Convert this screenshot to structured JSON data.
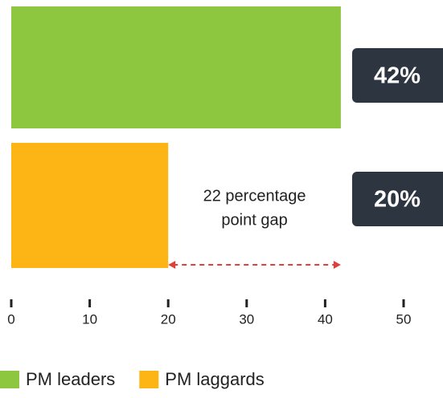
{
  "chart_data": {
    "type": "barh",
    "series": [
      {
        "name": "PM leaders",
        "color": "#8dc63f",
        "values": [
          42
        ],
        "value_labels": [
          "42%"
        ]
      },
      {
        "name": "PM laggards",
        "color": "#fdb515",
        "values": [
          20
        ],
        "value_labels": [
          "20%"
        ]
      }
    ],
    "annotation": [
      "22 percentage",
      "point gap"
    ],
    "xlim": [
      0,
      50
    ],
    "xticks": [
      0,
      10,
      20,
      30,
      40,
      50
    ],
    "legend": "bottom-left"
  }
}
